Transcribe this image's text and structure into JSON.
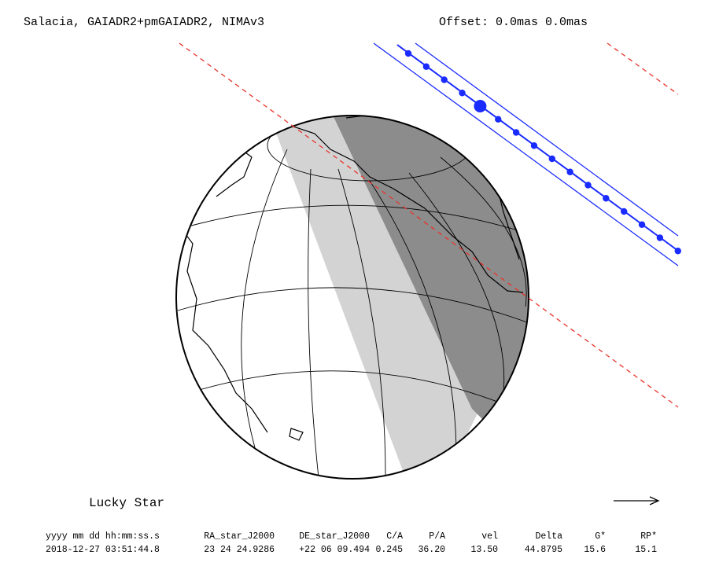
{
  "header": {
    "title": "Salacia, GAIADR2+pmGAIADR2, NIMAv3",
    "offset": "Offset: 0.0mas 0.0mas"
  },
  "footer": {
    "label": "Lucky Star",
    "columns": [
      "yyyy mm dd hh:mm:ss.s",
      "RA_star_J2000",
      "DE_star_J2000",
      "C/A",
      "P/A",
      "vel",
      "Delta",
      "G*",
      "RP*"
    ],
    "row": [
      "2018-12-27 03:51:44.8",
      "23 24 24.9286",
      "+22 06 09.494",
      "0.245",
      "36.20",
      "13.50",
      "44.8795",
      "15.6",
      "15.1"
    ]
  }
}
